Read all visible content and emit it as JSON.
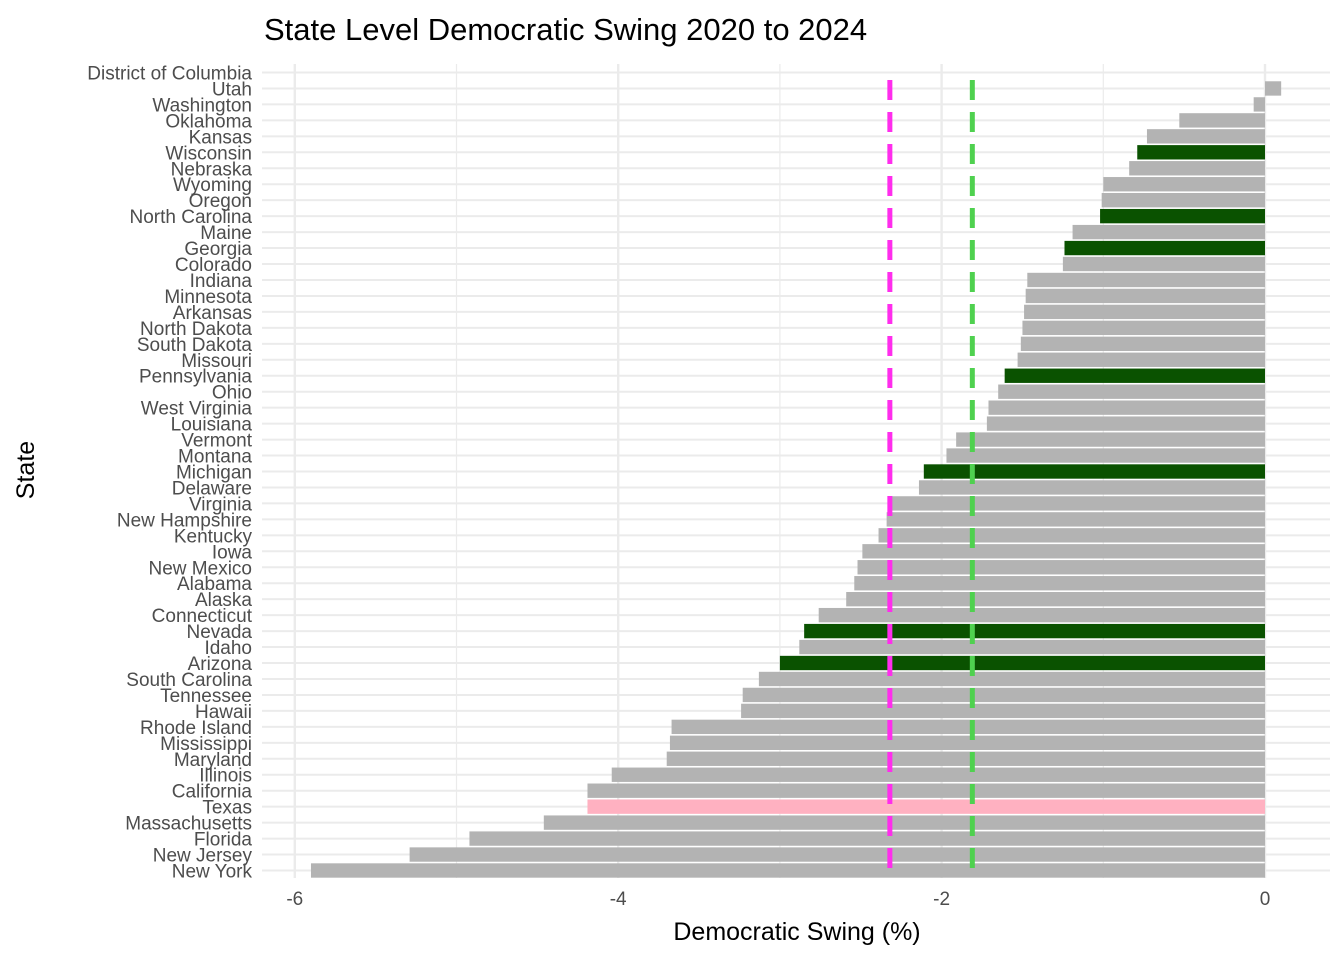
{
  "chart_data": {
    "type": "bar",
    "orientation": "horizontal",
    "title": "State Level Democratic Swing 2020 to 2024",
    "xlabel": "Democratic Swing (%)",
    "ylabel": "State",
    "xlim": [
      -6.1,
      0.4
    ],
    "xticks": [
      -6,
      -4,
      -2,
      0
    ],
    "xtick_labels": [
      "-6",
      "-4",
      "-2",
      "0"
    ],
    "grid": true,
    "colors": {
      "default": "#b3b3b3",
      "highlight": "#0a5200",
      "texas": "#ffb1c1",
      "line_magenta": "#ff2ded",
      "line_green": "#4fd14f",
      "grid": "#ebebeb"
    },
    "reference_lines": [
      {
        "x": -2.32,
        "color": "#ff2ded",
        "style": "dashed"
      },
      {
        "x": -1.81,
        "color": "#4fd14f",
        "style": "dashed"
      }
    ],
    "categories": [
      "District of Columbia",
      "Utah",
      "Washington",
      "Oklahoma",
      "Kansas",
      "Wisconsin",
      "Nebraska",
      "Wyoming",
      "Oregon",
      "North Carolina",
      "Maine",
      "Georgia",
      "Colorado",
      "Indiana",
      "Minnesota",
      "Arkansas",
      "North Dakota",
      "South Dakota",
      "Missouri",
      "Pennsylvania",
      "Ohio",
      "West Virginia",
      "Louisiana",
      "Vermont",
      "Montana",
      "Michigan",
      "Delaware",
      "Virginia",
      "New Hampshire",
      "Kentucky",
      "Iowa",
      "New Mexico",
      "Alabama",
      "Alaska",
      "Connecticut",
      "Nevada",
      "Idaho",
      "Arizona",
      "South Carolina",
      "Tennessee",
      "Hawaii",
      "Rhode Island",
      "Mississippi",
      "Maryland",
      "Illinois",
      "California",
      "Texas",
      "Massachusetts",
      "Florida",
      "New Jersey",
      "New York"
    ],
    "values": [
      0,
      0.1,
      -0.07,
      -0.53,
      -0.73,
      -0.79,
      -0.84,
      -1.0,
      -1.01,
      -1.02,
      -1.19,
      -1.24,
      -1.25,
      -1.47,
      -1.48,
      -1.49,
      -1.5,
      -1.51,
      -1.53,
      -1.61,
      -1.65,
      -1.71,
      -1.72,
      -1.91,
      -1.97,
      -2.11,
      -2.14,
      -2.32,
      -2.34,
      -2.39,
      -2.49,
      -2.52,
      -2.54,
      -2.59,
      -2.76,
      -2.85,
      -2.88,
      -3.0,
      -3.13,
      -3.23,
      -3.24,
      -3.67,
      -3.68,
      -3.7,
      -4.04,
      -4.19,
      -4.19,
      -4.46,
      -4.92,
      -5.29,
      -5.9
    ],
    "bar_color_keys": [
      "default",
      "default",
      "default",
      "default",
      "default",
      "highlight",
      "default",
      "default",
      "default",
      "highlight",
      "default",
      "highlight",
      "default",
      "default",
      "default",
      "default",
      "default",
      "default",
      "default",
      "highlight",
      "default",
      "default",
      "default",
      "default",
      "default",
      "highlight",
      "default",
      "default",
      "default",
      "default",
      "default",
      "default",
      "default",
      "default",
      "default",
      "highlight",
      "default",
      "highlight",
      "default",
      "default",
      "default",
      "default",
      "default",
      "default",
      "default",
      "default",
      "texas",
      "default",
      "default",
      "default",
      "default"
    ]
  }
}
